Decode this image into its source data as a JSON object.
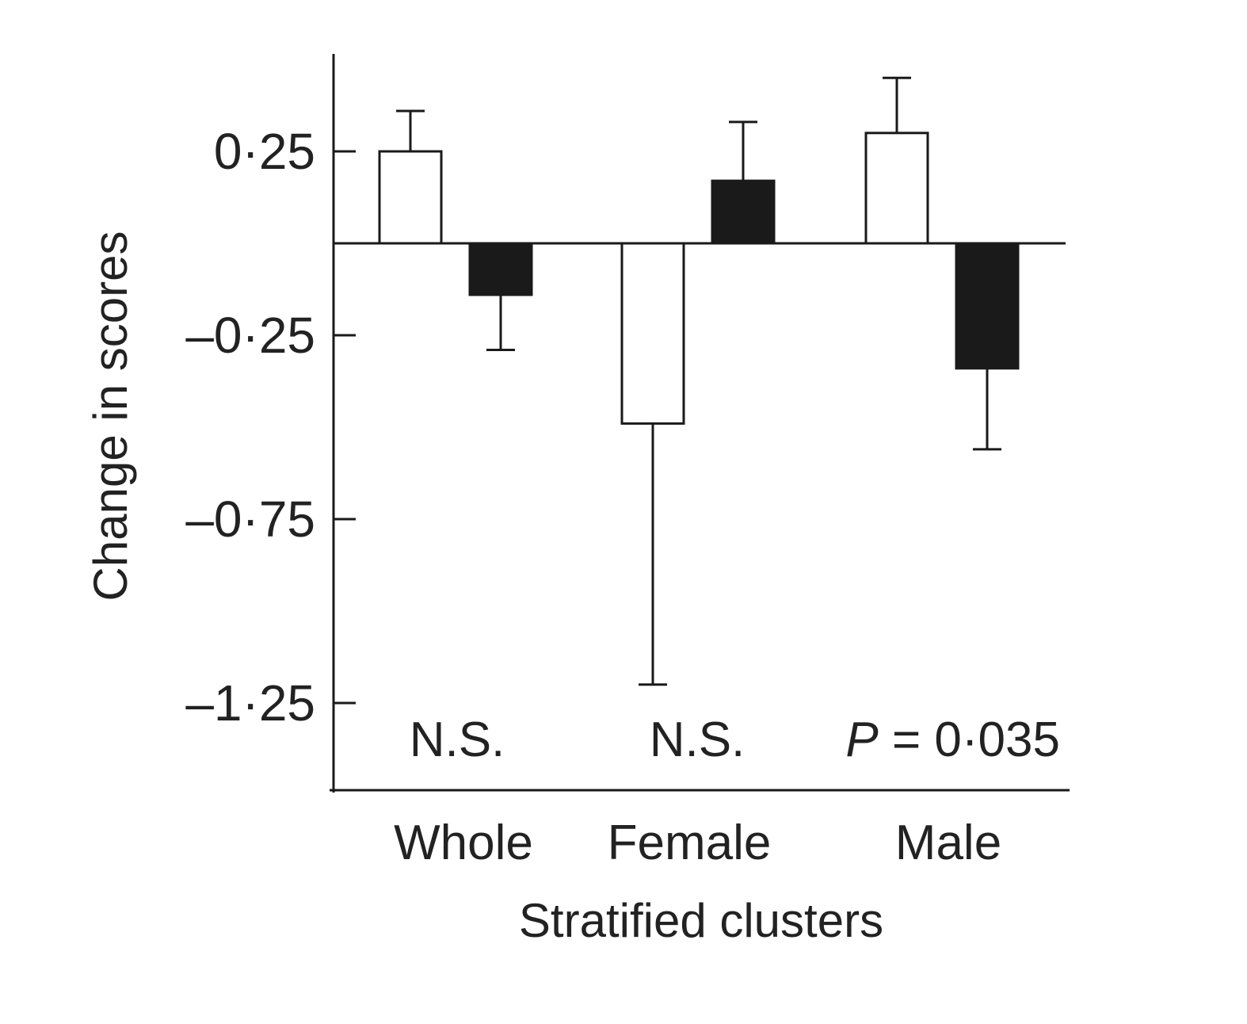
{
  "chart_data": {
    "type": "bar",
    "categories": [
      "Whole",
      "Female",
      "Male"
    ],
    "series": [
      {
        "values": [
          0.25,
          -0.49,
          0.3
        ],
        "error_plus": [
          0.11,
          0.0,
          0.15
        ],
        "error_minus": [
          0.0,
          0.71,
          0.0
        ],
        "fill": "#ffffff"
      },
      {
        "values": [
          -0.14,
          0.17,
          -0.34
        ],
        "error_plus": [
          0.0,
          0.16,
          0.0
        ],
        "error_minus": [
          0.15,
          0.0,
          0.22
        ],
        "fill": "#1a1a1a"
      }
    ],
    "yticks": [
      0.25,
      -0.25,
      -0.75,
      -1.25
    ],
    "ytick_labels": [
      "0·25",
      "–0·25",
      "–0·75",
      "–1·25"
    ],
    "ylim": [
      -1.5,
      0.5
    ],
    "xlabel": "Stratified clusters",
    "ylabel": "Change in scores",
    "annotations": [
      {
        "category": "Whole",
        "text": "N.S."
      },
      {
        "category": "Female",
        "text": "N.S."
      },
      {
        "category": "Male",
        "p_symbol": "P",
        "text": " = 0·035"
      }
    ],
    "grid": false,
    "colors": {
      "axis": "#1a1a1a",
      "text": "#222222"
    }
  }
}
